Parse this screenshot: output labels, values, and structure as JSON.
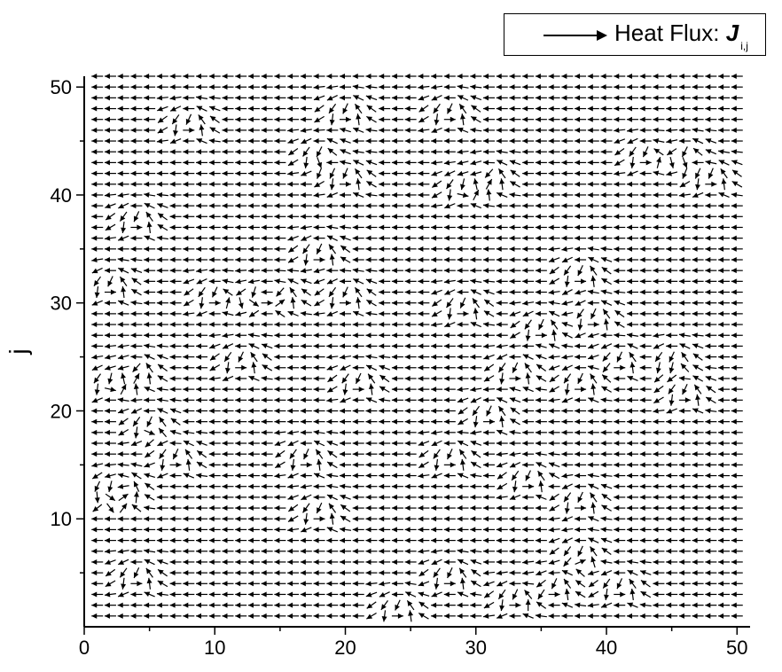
{
  "chart_data": {
    "type": "vector_field",
    "title": "",
    "xlabel": "",
    "ylabel": "j",
    "xlim": [
      0,
      51
    ],
    "ylim": [
      0,
      51
    ],
    "x_ticks": [
      0,
      10,
      20,
      30,
      40,
      50
    ],
    "y_ticks": [
      10,
      20,
      30,
      40,
      50
    ],
    "x_tick_labels": [
      "0",
      "10",
      "20",
      "30",
      "40",
      "50"
    ],
    "y_tick_labels": [
      "10",
      "20",
      "30",
      "40",
      "50"
    ],
    "grid": false,
    "legend": {
      "placement": "top-right",
      "text": "Heat Flux: ",
      "symbol": "J",
      "subscript": "i,j"
    },
    "field": {
      "i_range": [
        1,
        50
      ],
      "j_range": [
        1,
        51
      ],
      "predominant_direction": "-x",
      "vortex_centers": [
        [
          8,
          47
        ],
        [
          20,
          48
        ],
        [
          28,
          48
        ],
        [
          18,
          44
        ],
        [
          43,
          44
        ],
        [
          46,
          44
        ],
        [
          48,
          42
        ],
        [
          20,
          42
        ],
        [
          29,
          41
        ],
        [
          31,
          42
        ],
        [
          4,
          38
        ],
        [
          18,
          35
        ],
        [
          38,
          33
        ],
        [
          2,
          32
        ],
        [
          10,
          31
        ],
        [
          13,
          31
        ],
        [
          15,
          31
        ],
        [
          20,
          31
        ],
        [
          29,
          30
        ],
        [
          39,
          29
        ],
        [
          35,
          28
        ],
        [
          12,
          25
        ],
        [
          41,
          25
        ],
        [
          45,
          25
        ],
        [
          4,
          24
        ],
        [
          33,
          24
        ],
        [
          2,
          23
        ],
        [
          21,
          23
        ],
        [
          38,
          23
        ],
        [
          46,
          22
        ],
        [
          5,
          19
        ],
        [
          31,
          20
        ],
        [
          17,
          16
        ],
        [
          7,
          16
        ],
        [
          28,
          16
        ],
        [
          34,
          14
        ],
        [
          2,
          13
        ],
        [
          3,
          13
        ],
        [
          38,
          12
        ],
        [
          18,
          11
        ],
        [
          38,
          7
        ],
        [
          4,
          5
        ],
        [
          28,
          5
        ],
        [
          36,
          4
        ],
        [
          33,
          3
        ],
        [
          41,
          4
        ],
        [
          24,
          2
        ]
      ]
    }
  }
}
